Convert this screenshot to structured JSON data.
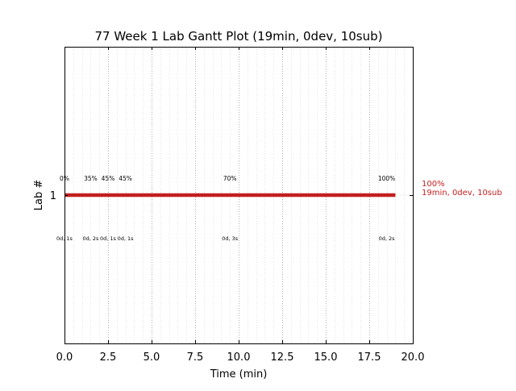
{
  "chart_data": {
    "type": "gantt",
    "title": "77 Week 1 Lab Gantt Plot (19min, 0dev, 10sub)",
    "xlabel": "Time (min)",
    "ylabel": "Lab #",
    "xlim": [
      0,
      20
    ],
    "x_ticks": [
      0,
      2.5,
      5,
      7.5,
      10,
      12.5,
      15,
      17.5,
      20
    ],
    "x_tick_labels": [
      "0.0",
      "2.5",
      "5.0",
      "7.5",
      "10.0",
      "12.5",
      "15.0",
      "17.5",
      "20.0"
    ],
    "y_tick_labels": [
      "1"
    ],
    "grid": true,
    "bars": [
      {
        "lab": "1",
        "start": 0,
        "end": 19,
        "color": "#c41e1e",
        "label_lines": [
          "100%",
          "19min, 0dev, 10sub"
        ]
      }
    ],
    "milestones": [
      {
        "x": 0,
        "percent_label": "0%",
        "detail_label": "0d, 1s"
      },
      {
        "x": 1.5,
        "percent_label": "35%",
        "detail_label": "0d, 2s"
      },
      {
        "x": 2.5,
        "percent_label": "45%",
        "detail_label": "0d, 1s"
      },
      {
        "x": 3.5,
        "percent_label": "45%",
        "detail_label": "0d, 1s"
      },
      {
        "x": 9.5,
        "percent_label": "70%",
        "detail_label": "0d, 3s"
      },
      {
        "x": 18.5,
        "percent_label": "100%",
        "detail_label": "0d, 2s"
      }
    ]
  }
}
